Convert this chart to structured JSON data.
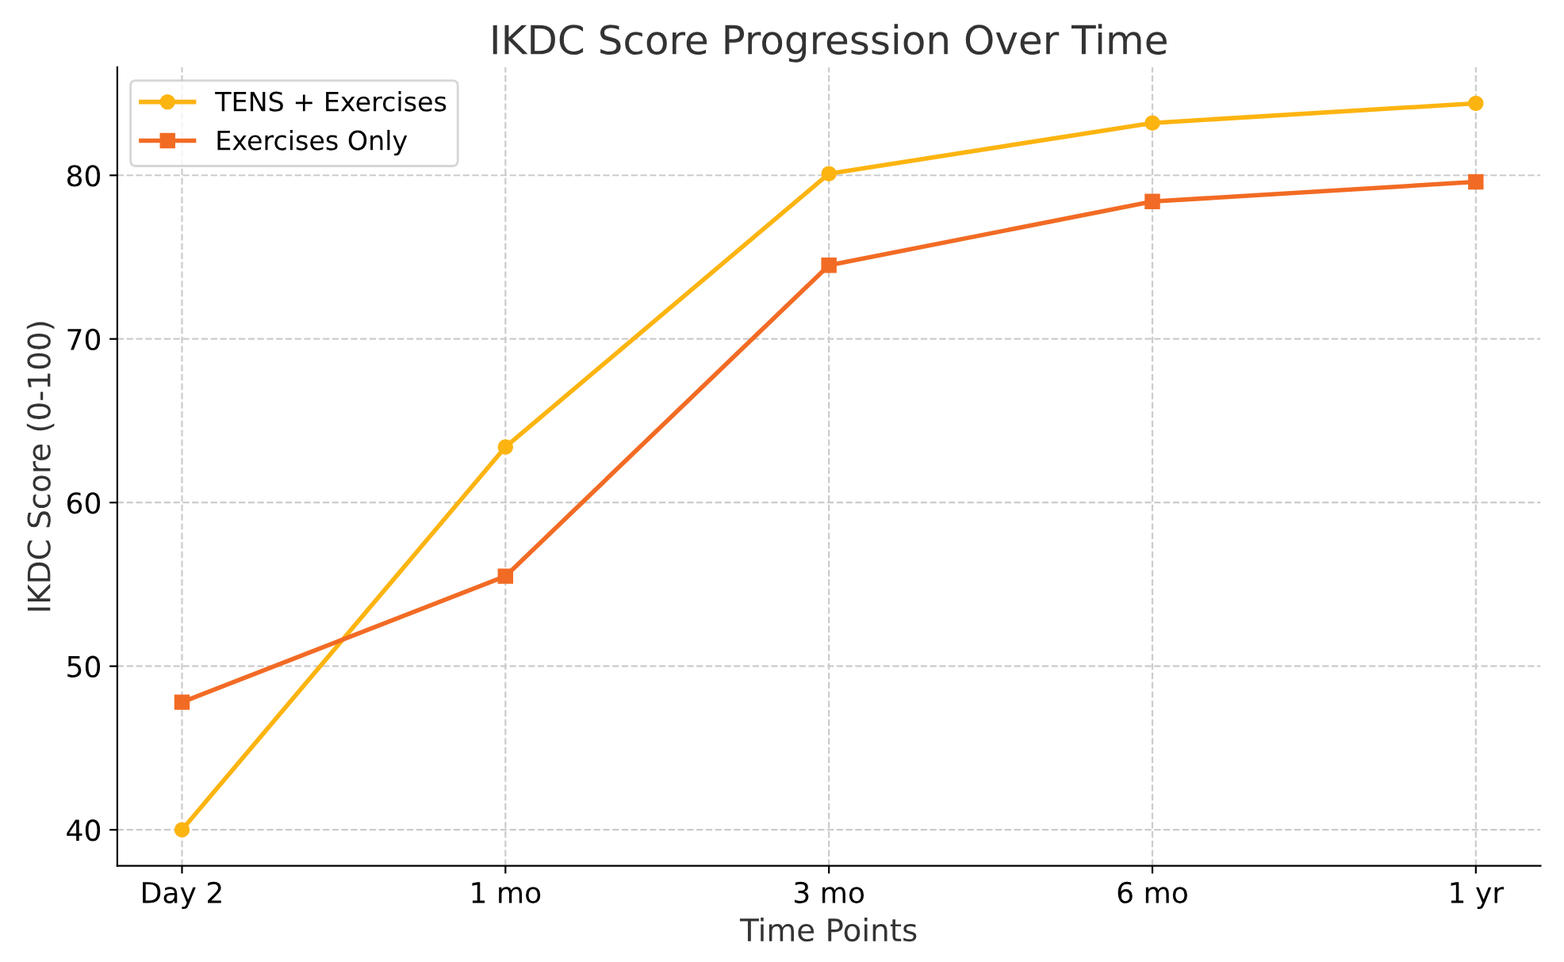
{
  "chart_data": {
    "type": "line",
    "title": "IKDC Score Progression Over Time",
    "xlabel": "Time Points",
    "ylabel": "IKDC Score (0-100)",
    "categories": [
      "Day 2",
      "1 mo",
      "3 mo",
      "6 mo",
      "1 yr"
    ],
    "series": [
      {
        "name": "TENS + Exercises",
        "color": "#fcb410",
        "marker": "circle",
        "values": [
          40.0,
          63.4,
          80.1,
          83.2,
          84.4
        ]
      },
      {
        "name": "Exercises Only",
        "color": "#f26b24",
        "marker": "square",
        "values": [
          47.8,
          55.5,
          74.5,
          78.4,
          79.6
        ]
      }
    ],
    "ylim": [
      37.8,
      86.6
    ],
    "yticks": [
      40,
      50,
      60,
      70,
      80
    ],
    "grid": true,
    "legend": "top left",
    "line_style": "solid"
  }
}
